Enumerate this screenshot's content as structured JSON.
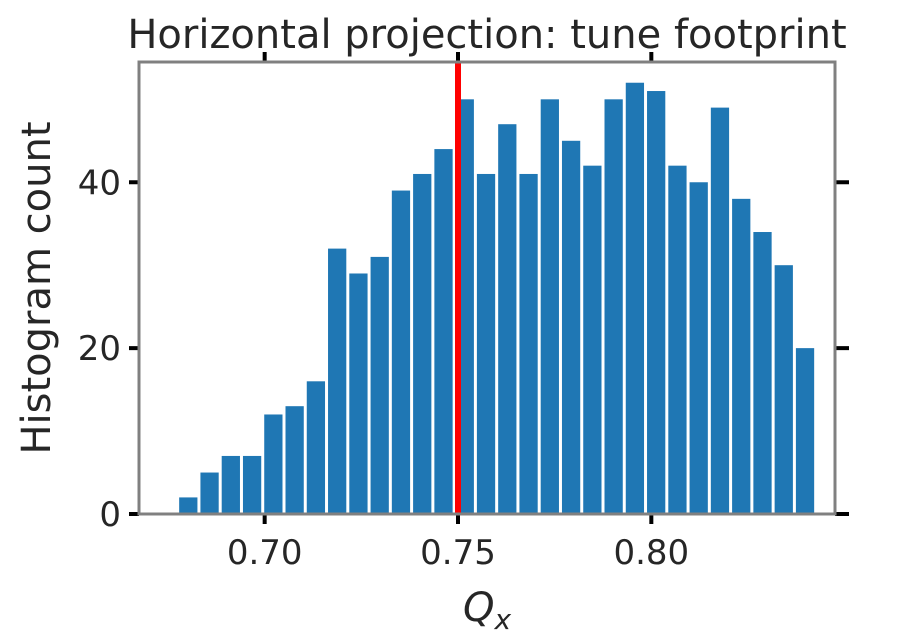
{
  "chart_data": {
    "type": "bar",
    "title": "Horizontal projection: tune footprint",
    "xlabel": "Q",
    "xlabel_subscript": "x",
    "ylabel": "Histogram count",
    "xlim": [
      0.6675,
      0.8475
    ],
    "ylim": [
      0,
      54.5
    ],
    "xticks": [
      0.7,
      0.75,
      0.8
    ],
    "xtick_labels": [
      "0.70",
      "0.75",
      "0.80"
    ],
    "yticks": [
      0,
      20,
      40
    ],
    "ytick_labels": [
      "0",
      "20",
      "40"
    ],
    "bin_start": 0.6775,
    "bin_width": 0.0055,
    "values": [
      2,
      5,
      7,
      7,
      12,
      13,
      16,
      32,
      29,
      31,
      39,
      41,
      44,
      50,
      41,
      47,
      41,
      50,
      45,
      42,
      50,
      52,
      51,
      42,
      40,
      49,
      38,
      34,
      30,
      20
    ],
    "bar_color": "#1f77b4",
    "reference_line": {
      "x": 0.75,
      "color": "#ff0000"
    },
    "grid": false,
    "legend": "none"
  }
}
